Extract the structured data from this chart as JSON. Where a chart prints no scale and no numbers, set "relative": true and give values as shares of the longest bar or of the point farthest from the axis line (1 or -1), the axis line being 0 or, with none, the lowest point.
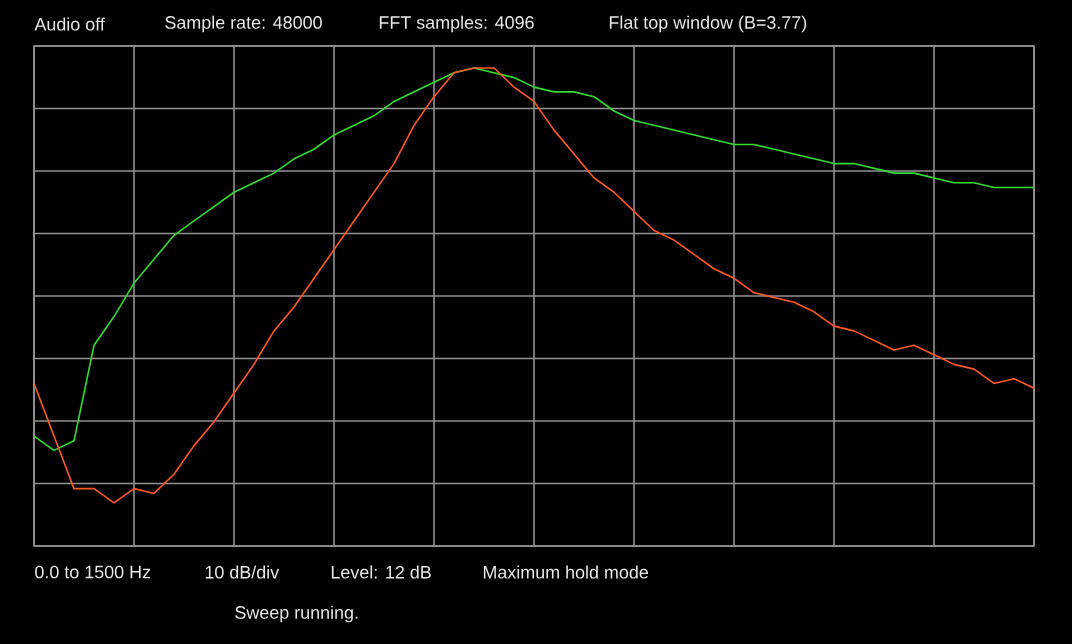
{
  "chart_data": {
    "type": "line",
    "relative": true,
    "grid": true,
    "marker": "none",
    "line_style": "solid",
    "categories": [
      null,
      null,
      null,
      null,
      null,
      null,
      null,
      null,
      null,
      null,
      null,
      null,
      null,
      null,
      null,
      null,
      null,
      null,
      null,
      null,
      null,
      null,
      null,
      null,
      null,
      null,
      null,
      null,
      null,
      null,
      null,
      null,
      null,
      null,
      null,
      null,
      null,
      null,
      null,
      null,
      null,
      null,
      null,
      null,
      null,
      null,
      null,
      null,
      null,
      null,
      null
    ],
    "series": [
      {
        "color": "#33dd33",
        "values": [
          0.23,
          0.2,
          0.22,
          0.42,
          0.48,
          0.55,
          0.6,
          0.65,
          0.68,
          0.71,
          0.74,
          0.76,
          0.78,
          0.81,
          0.83,
          0.86,
          0.88,
          0.9,
          0.93,
          0.95,
          0.97,
          0.99,
          1.0,
          0.99,
          0.98,
          0.96,
          0.95,
          0.95,
          0.94,
          0.91,
          0.89,
          0.88,
          0.87,
          0.86,
          0.85,
          0.84,
          0.84,
          0.83,
          0.82,
          0.81,
          0.8,
          0.8,
          0.79,
          0.78,
          0.78,
          0.77,
          0.76,
          0.76,
          0.75,
          0.75,
          0.75
        ]
      },
      {
        "color": "#ff5a28",
        "values": [
          0.34,
          0.23,
          0.12,
          0.12,
          0.09,
          0.12,
          0.11,
          0.15,
          0.21,
          0.26,
          0.32,
          0.38,
          0.45,
          0.5,
          0.56,
          0.62,
          0.68,
          0.74,
          0.8,
          0.88,
          0.94,
          0.99,
          1.0,
          1.0,
          0.96,
          0.93,
          0.87,
          0.82,
          0.77,
          0.74,
          0.7,
          0.66,
          0.64,
          0.61,
          0.58,
          0.56,
          0.53,
          0.52,
          0.51,
          0.49,
          0.46,
          0.45,
          0.43,
          0.41,
          0.42,
          0.4,
          0.38,
          0.37,
          0.34,
          0.35,
          0.33
        ]
      }
    ],
    "annotations": [
      "Audio off",
      "Sample rate: 48000",
      "FFT samples: 4096",
      "Flat top window (B=3.77)",
      "0.0 to 1500 Hz",
      "10 dB/div",
      "Level: 12 dB",
      "Maximum hold mode",
      "Sweep running."
    ]
  }
}
